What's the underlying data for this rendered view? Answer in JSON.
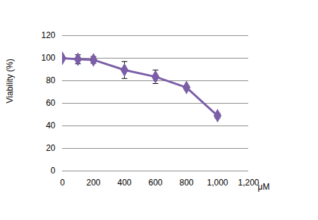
{
  "chart_data": {
    "type": "line",
    "x": [
      0,
      100,
      200,
      400,
      600,
      800,
      1000
    ],
    "values": [
      100,
      99,
      98.5,
      89.5,
      83.5,
      74,
      49
    ],
    "errors": [
      0.5,
      4,
      3,
      7.5,
      6,
      1.5,
      2
    ],
    "color": "#7b5ea7",
    "marker": "diamond",
    "xlabel": "μM",
    "ylabel": "Viability (%)",
    "xlim": [
      0,
      1200
    ],
    "xticks": [
      0,
      200,
      400,
      600,
      800,
      1000,
      1200
    ],
    "ylim": [
      0,
      120
    ],
    "yticks": [
      0,
      20,
      40,
      60,
      80,
      100,
      120
    ],
    "grid": true
  }
}
